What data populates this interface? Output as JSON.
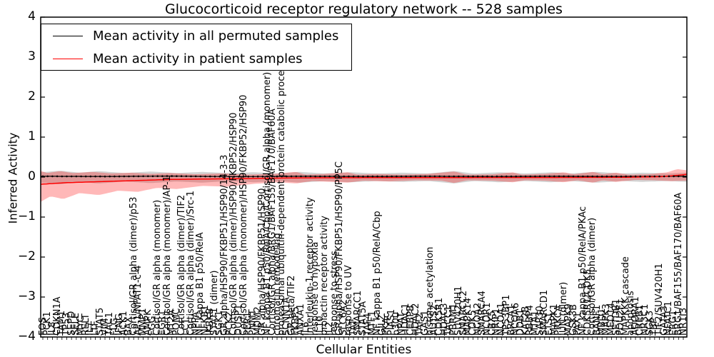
{
  "figure": {
    "title": "Glucocorticoid receptor regulatory network -- 528 samples",
    "background": "#ffffff"
  },
  "legend": {
    "position": "upper left",
    "entries": [
      {
        "label": "Mean activity in all permuted samples",
        "color": "#000000"
      },
      {
        "label": "Mean activity in patient samples",
        "color": "#ff0000"
      }
    ]
  },
  "chart_data": {
    "type": "line",
    "title": "Glucocorticoid receptor regulatory network -- 528 samples",
    "xlabel": "Cellular Entities",
    "ylabel": "Inferred Activity",
    "ylim": [
      -4,
      4
    ],
    "yticks": [
      4,
      3,
      2,
      1,
      0,
      -1,
      -2,
      -3,
      -4
    ],
    "ytick_labels": [
      "4",
      "3",
      "2",
      "1",
      "0",
      "−1",
      "−2",
      "−3",
      "−4"
    ],
    "grid": false,
    "legend_position": "upper left",
    "x_tick_rotation": 90,
    "categories": [
      "FOS",
      "PCK1",
      "IL8",
      "CDKN1A",
      "TAM1",
      "TP53",
      "SEPD",
      "SELE",
      "MYC",
      "RELT",
      "IL7",
      "LTF",
      "STAT5",
      "VIM",
      "TAC1",
      "FLG",
      "IFNG",
      "ACK1",
      "BAX",
      "Cortisol/GR alpha (dimer)/p53",
      "AP-1/NFAT1-c-4",
      "MMP1",
      "AMPK",
      "FGG",
      "Cortisol/GR alpha (monomer)",
      "EGR1",
      "Cortisol/GR alpha (monomer)/AP-1",
      "MT2A",
      "POMC",
      "Cortisol/GR alpha (dimer)/TIF2",
      "LCT",
      "Cortisol/GR alpha (dimer)/Src-1",
      "NPPA",
      "NF kappa B1 p50/RelA",
      "NFKB1",
      "IKBKB",
      "STAT1 (dimer)",
      "SGK1",
      "GR alpha/HSP90/FKBP51/HSP90/14-3-3",
      "PCK2",
      "Cortisol/GR alpha (dimer)/HSP90/FKBP52/HSP90",
      "DUSP1",
      "Cortisol/GR alpha (monomer)/HSP90/FKBP52/HSP90",
      "PER1",
      "PNMT",
      "MDM2",
      "GR alpha/HSP90/FKBP51/HSP90",
      "NF kappa B1 p50/RelA/Cbp/Cortisol/GR alpha (monomer)",
      "Cortisol/GR alpha/BRG1/BAF155/BAF170/BAF60A",
      "chromatin remodeling",
      "proteasomal ubiquitin-dependent protein catabolic process",
      "SCNN1A",
      "GR beta/TIF2",
      "FKBP5",
      "ANXA1",
      "IL6",
      "interleukin-1 receptor activity",
      "response to hypoxia",
      "IL10",
      "prolactin receptor activity",
      "IL2",
      "response to stress",
      "GR alpha/HSP90/FKBP51/HSP90/PP5C",
      "SLC6A2",
      "response to UV",
      "TAT",
      "SMARCC1",
      "STAT5A",
      "TAF4",
      "MTF1",
      "NF kappa B1 p50/RelA/Cbp",
      "GILZ",
      "PKAc",
      "PIAS1",
      "p300",
      "NPAT",
      "HDAC1",
      "CEBPB",
      "HDAC2",
      "TAF2",
      "GAS1",
      "histone acetylation",
      "AUTS2",
      "CDK5R1",
      "HDAC3",
      "TACC1",
      "PBRM1",
      "SUV420H1",
      "SMARCC2",
      "MAPK14",
      "CDK5",
      "NCOA2",
      "SMARCA4",
      "NCOR1",
      "CBX5",
      "NRIP1",
      "NCOA1",
      "TP53BP1",
      "BRCA1",
      "NCOA6",
      "DDB1",
      "KAT2B",
      "RBBP4",
      "MTA1",
      "SAP30",
      "SMARCD1",
      "ETS1",
      "MAPK1",
      "PRKCA",
      "JUN (dimer)",
      "MAPK9",
      "GSK3B",
      "PAX1",
      "NF kappa B1 p50/RelA/PKAc",
      "CDK5R1/CDK5",
      "Cortisol/GR alpha (dimer)",
      "BANF1",
      "MBD1",
      "MAPK3",
      "MED14",
      "SETDB1",
      "POU2F1",
      "MAPKKK cascade",
      "apoptosis",
      "ADORA1",
      "CREB1",
      "NR3C1",
      "SGK3",
      "TBP",
      "TIF2/SUV420H1",
      "GATA3",
      "NFATC1",
      "ERG1",
      "BRG1/BAF155/BAF170/BAF60A",
      "NR1I3"
    ],
    "series": [
      {
        "name": "Mean activity in all permuted samples",
        "color": "#000000",
        "line_width": 1.2,
        "marker": "dot",
        "band_color": "#808080",
        "band_opacity": 0.35,
        "mean_control": [
          [
            0,
            0.02
          ],
          [
            0.1,
            0.015
          ],
          [
            0.2,
            0.025
          ],
          [
            0.3,
            0.01
          ],
          [
            0.4,
            0.02
          ],
          [
            0.5,
            0.015
          ],
          [
            0.6,
            0.02
          ],
          [
            0.7,
            0.015
          ],
          [
            0.8,
            0.02
          ],
          [
            0.9,
            0.015
          ],
          [
            1,
            0.02
          ]
        ],
        "upper_control": [
          [
            0,
            0.12
          ],
          [
            0.03,
            0.16
          ],
          [
            0.06,
            0.11
          ],
          [
            0.09,
            0.15
          ],
          [
            0.13,
            0.1
          ],
          [
            0.17,
            0.14
          ],
          [
            0.21,
            0.1
          ],
          [
            0.25,
            0.13
          ],
          [
            0.29,
            0.1
          ],
          [
            0.33,
            0.12
          ],
          [
            0.37,
            0.09
          ],
          [
            0.4,
            0.13
          ],
          [
            0.44,
            0.09
          ],
          [
            0.48,
            0.12
          ],
          [
            0.52,
            0.09
          ],
          [
            0.56,
            0.11
          ],
          [
            0.6,
            0.09
          ],
          [
            0.64,
            0.15
          ],
          [
            0.67,
            0.09
          ],
          [
            0.71,
            0.12
          ],
          [
            0.75,
            0.09
          ],
          [
            0.79,
            0.12
          ],
          [
            0.82,
            0.09
          ],
          [
            0.86,
            0.13
          ],
          [
            0.9,
            0.09
          ],
          [
            0.93,
            0.11
          ],
          [
            0.97,
            0.09
          ],
          [
            1,
            0.11
          ]
        ],
        "lower_control": [
          [
            0,
            -0.14
          ],
          [
            0.03,
            -0.18
          ],
          [
            0.06,
            -0.12
          ],
          [
            0.09,
            -0.16
          ],
          [
            0.13,
            -0.11
          ],
          [
            0.17,
            -0.15
          ],
          [
            0.21,
            -0.11
          ],
          [
            0.25,
            -0.14
          ],
          [
            0.29,
            -0.1
          ],
          [
            0.33,
            -0.13
          ],
          [
            0.37,
            -0.1
          ],
          [
            0.4,
            -0.14
          ],
          [
            0.44,
            -0.1
          ],
          [
            0.48,
            -0.13
          ],
          [
            0.52,
            -0.1
          ],
          [
            0.56,
            -0.12
          ],
          [
            0.6,
            -0.1
          ],
          [
            0.64,
            -0.16
          ],
          [
            0.67,
            -0.1
          ],
          [
            0.71,
            -0.13
          ],
          [
            0.75,
            -0.1
          ],
          [
            0.79,
            -0.13
          ],
          [
            0.82,
            -0.1
          ],
          [
            0.86,
            -0.14
          ],
          [
            0.9,
            -0.1
          ],
          [
            0.93,
            -0.12
          ],
          [
            0.97,
            -0.1
          ],
          [
            1,
            -0.12
          ]
        ]
      },
      {
        "name": "Mean activity in patient samples",
        "color": "#ff0000",
        "line_width": 1.5,
        "marker": "none",
        "band_color": "#ff0000",
        "band_opacity": 0.28,
        "mean_control": [
          [
            0,
            -0.18
          ],
          [
            0.04,
            -0.14
          ],
          [
            0.08,
            -0.12
          ],
          [
            0.12,
            -0.1
          ],
          [
            0.16,
            -0.08
          ],
          [
            0.2,
            -0.06
          ],
          [
            0.25,
            -0.05
          ],
          [
            0.3,
            -0.04
          ],
          [
            0.35,
            -0.03
          ],
          [
            0.4,
            -0.02
          ],
          [
            0.5,
            -0.015
          ],
          [
            0.6,
            -0.015
          ],
          [
            0.7,
            -0.01
          ],
          [
            0.8,
            -0.01
          ],
          [
            0.9,
            -0.005
          ],
          [
            0.96,
            0.01
          ],
          [
            0.99,
            0.05
          ],
          [
            1,
            0.07
          ]
        ],
        "upper_control": [
          [
            0,
            0.16
          ],
          [
            0.01,
            0.1
          ],
          [
            0.03,
            0.15
          ],
          [
            0.05,
            0.1
          ],
          [
            0.08,
            0.13
          ],
          [
            0.11,
            0.09
          ],
          [
            0.14,
            0.11
          ],
          [
            0.17,
            0.08
          ],
          [
            0.2,
            0.1
          ],
          [
            0.24,
            0.07
          ],
          [
            0.28,
            0.09
          ],
          [
            0.32,
            0.06
          ],
          [
            0.36,
            0.08
          ],
          [
            0.395,
            0.13
          ],
          [
            0.41,
            0.06
          ],
          [
            0.44,
            0.08
          ],
          [
            0.475,
            0.12
          ],
          [
            0.49,
            0.06
          ],
          [
            0.52,
            0.08
          ],
          [
            0.56,
            0.06
          ],
          [
            0.6,
            0.08
          ],
          [
            0.64,
            0.14
          ],
          [
            0.66,
            0.06
          ],
          [
            0.7,
            0.07
          ],
          [
            0.73,
            0.12
          ],
          [
            0.745,
            0.06
          ],
          [
            0.78,
            0.08
          ],
          [
            0.81,
            0.12
          ],
          [
            0.825,
            0.07
          ],
          [
            0.855,
            0.13
          ],
          [
            0.87,
            0.07
          ],
          [
            0.89,
            0.11
          ],
          [
            0.91,
            0.06
          ],
          [
            0.94,
            0.07
          ],
          [
            0.97,
            0.12
          ],
          [
            0.985,
            0.2
          ],
          [
            1,
            0.17
          ]
        ],
        "lower_control": [
          [
            0,
            -0.62
          ],
          [
            0.015,
            -0.48
          ],
          [
            0.035,
            -0.55
          ],
          [
            0.06,
            -0.4
          ],
          [
            0.09,
            -0.45
          ],
          [
            0.12,
            -0.34
          ],
          [
            0.15,
            -0.37
          ],
          [
            0.18,
            -0.27
          ],
          [
            0.21,
            -0.3
          ],
          [
            0.25,
            -0.22
          ],
          [
            0.29,
            -0.24
          ],
          [
            0.33,
            -0.17
          ],
          [
            0.37,
            -0.13
          ],
          [
            0.395,
            -0.16
          ],
          [
            0.42,
            -0.1
          ],
          [
            0.45,
            -0.12
          ],
          [
            0.475,
            -0.14
          ],
          [
            0.5,
            -0.09
          ],
          [
            0.54,
            -0.11
          ],
          [
            0.58,
            -0.08
          ],
          [
            0.62,
            -0.09
          ],
          [
            0.64,
            -0.15
          ],
          [
            0.66,
            -0.08
          ],
          [
            0.7,
            -0.09
          ],
          [
            0.73,
            -0.13
          ],
          [
            0.75,
            -0.08
          ],
          [
            0.78,
            -0.09
          ],
          [
            0.81,
            -0.13
          ],
          [
            0.83,
            -0.08
          ],
          [
            0.855,
            -0.14
          ],
          [
            0.87,
            -0.08
          ],
          [
            0.89,
            -0.12
          ],
          [
            0.92,
            -0.07
          ],
          [
            0.95,
            -0.08
          ],
          [
            0.975,
            -0.1
          ],
          [
            1,
            -0.09
          ]
        ]
      }
    ]
  }
}
